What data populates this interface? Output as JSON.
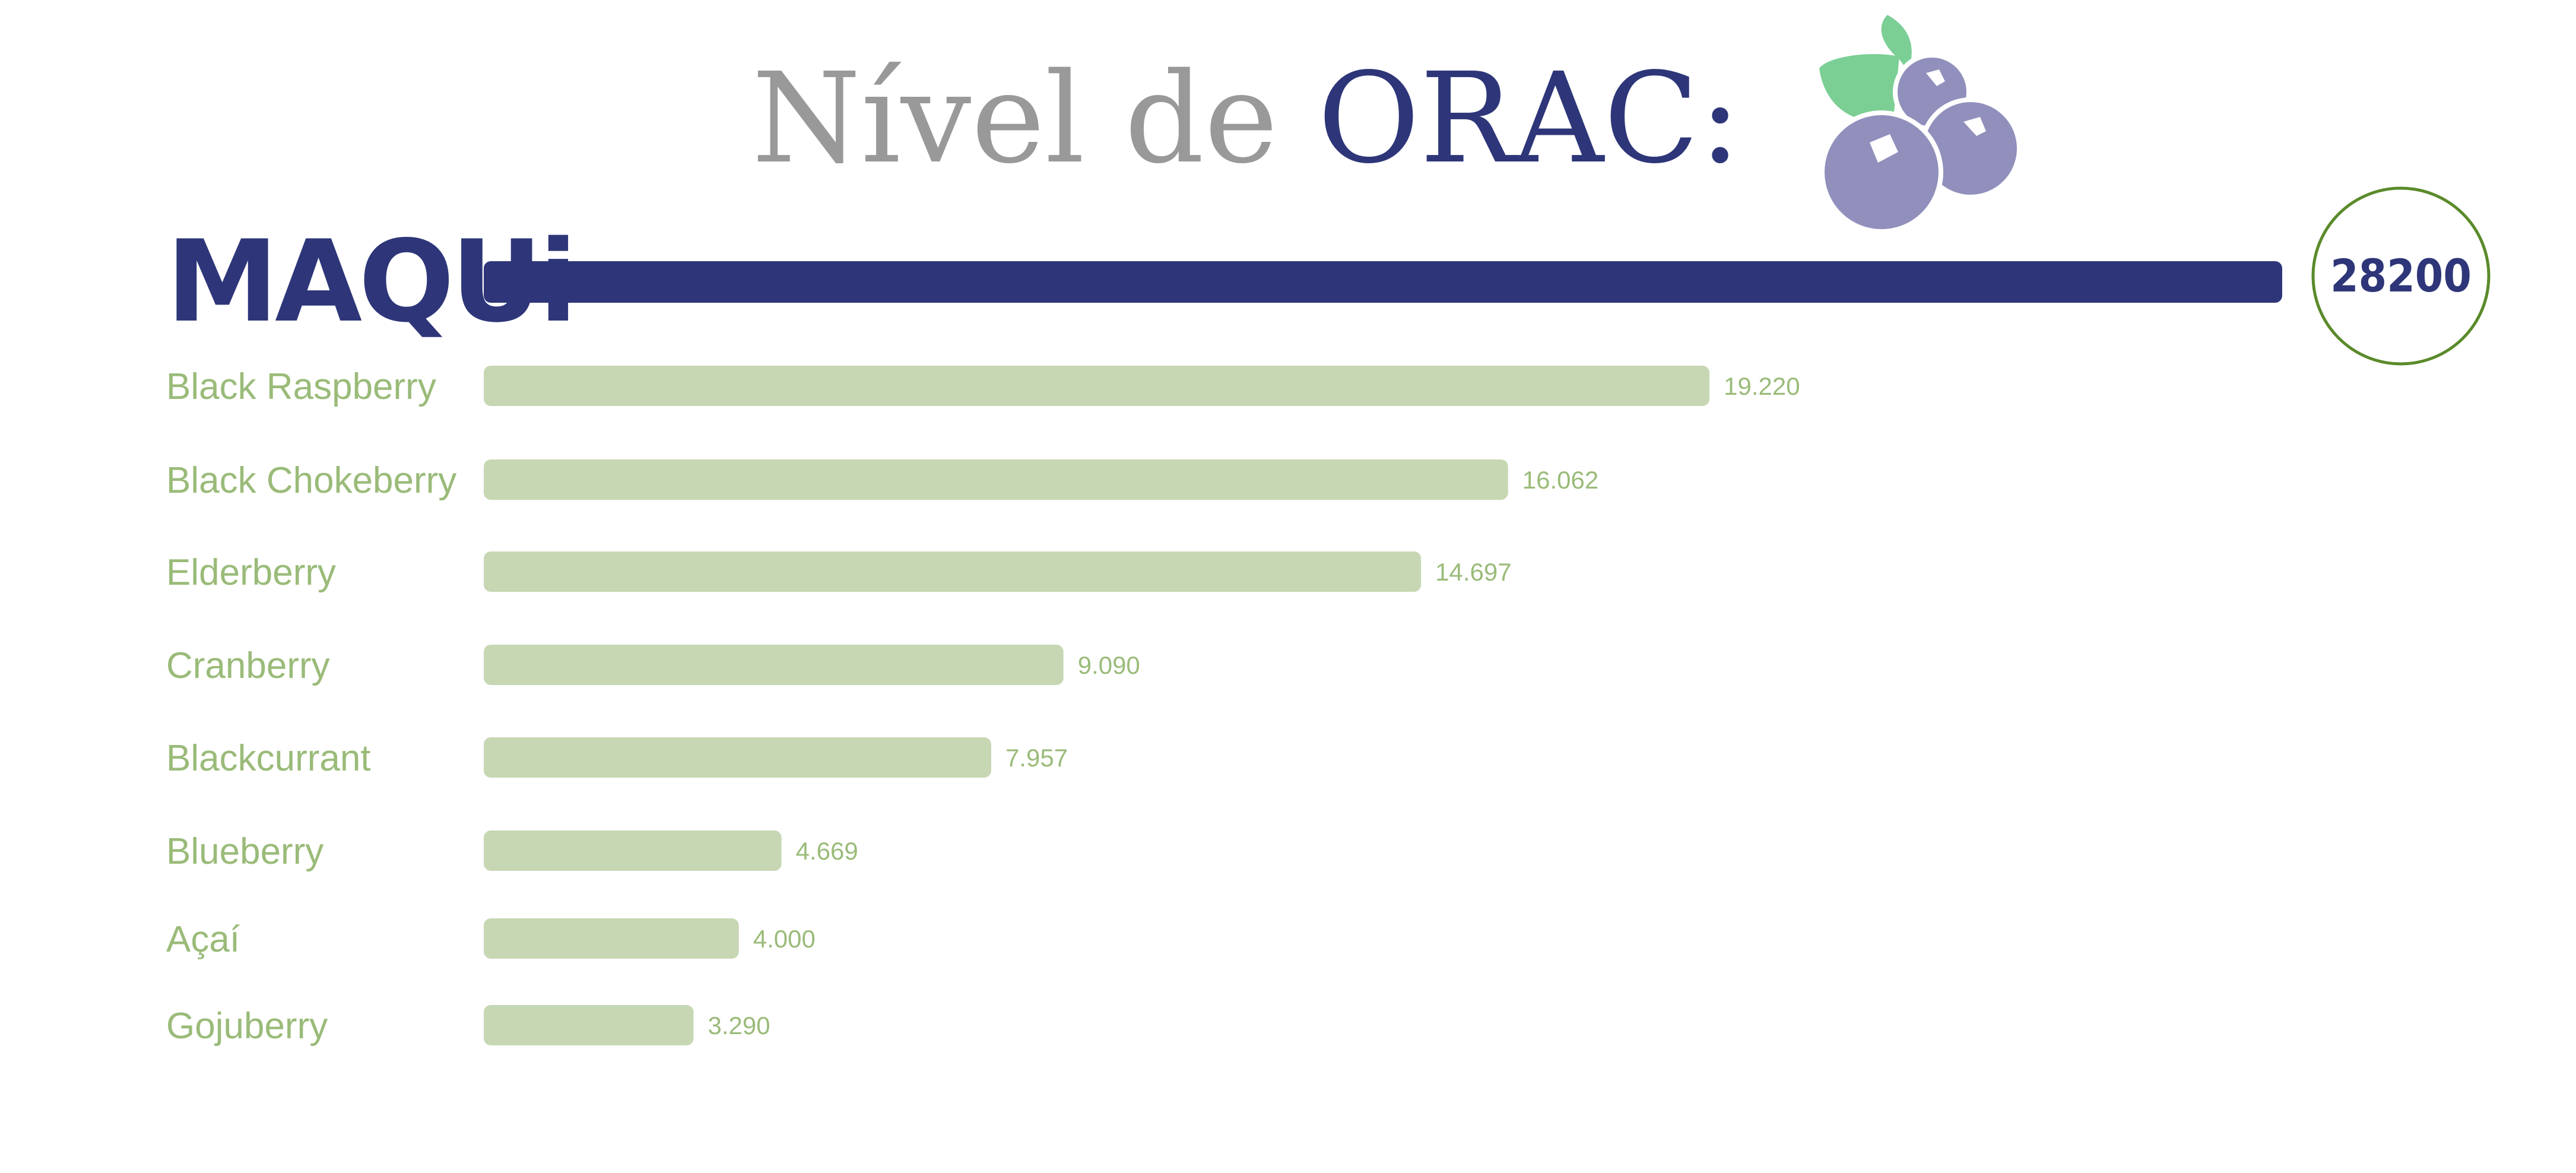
{
  "title": {
    "prefix": "Nível de",
    "highlight": "ORAC:"
  },
  "colors": {
    "highlight_bar": "#2e3679",
    "bar": "#c7d7b4",
    "label": "#9abb79",
    "title_gray": "#999999",
    "circle": "#5a8a2a",
    "berry": "#918fbc",
    "leaf": "#7bcf95"
  },
  "illustration": "blueberries-icon",
  "chart_data": {
    "type": "bar",
    "orientation": "horizontal",
    "categories": [
      "MAQUi",
      "Black Raspberry",
      "Black Chokeberry",
      "Elderberry",
      "Cranberry",
      "Blackcurrant",
      "Blueberry",
      "Açaí",
      "Gojuberry"
    ],
    "values": [
      28200,
      19220,
      16062,
      14697,
      9090,
      7957,
      4669,
      4000,
      3290
    ],
    "value_labels": [
      "28200",
      "19.220",
      "16.062",
      "14.697",
      "9.090",
      "7.957",
      "4.669",
      "4.000",
      "3.290"
    ],
    "highlight_index": 0,
    "xlim": [
      0,
      28200
    ],
    "grid": false,
    "legend": "none"
  }
}
